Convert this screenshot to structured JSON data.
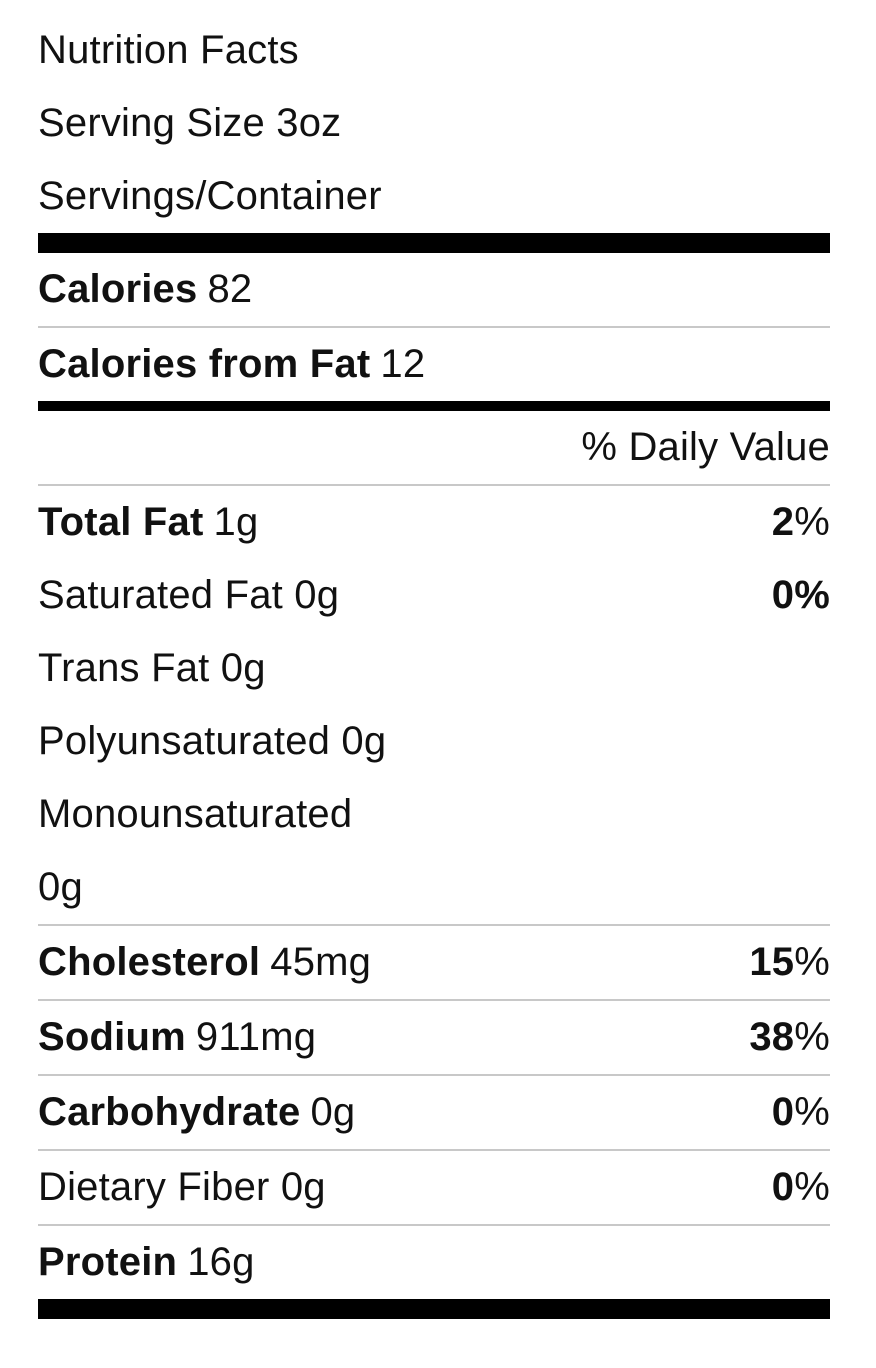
{
  "header": {
    "title": "Nutrition Facts",
    "serving_size": "Serving Size 3oz",
    "servings_per_container": "Servings/Container"
  },
  "calories": {
    "label": "Calories",
    "value": "82",
    "from_fat_label": "Calories from Fat",
    "from_fat_value": "12"
  },
  "daily_value_header": "% Daily Value",
  "nutrients": {
    "total_fat": {
      "label": "Total Fat",
      "amount": "1g",
      "dv_number": "2",
      "dv_sign": "%"
    },
    "saturated_fat": {
      "label": "Saturated Fat 0g",
      "dv": "0%"
    },
    "trans_fat": {
      "label": "Trans Fat 0g"
    },
    "polyunsaturated": {
      "label": "Polyunsaturated 0g"
    },
    "monounsaturated": {
      "label": "Monounsaturated",
      "amount": "0g"
    },
    "cholesterol": {
      "label": "Cholesterol",
      "amount": "45mg",
      "dv_number": "15",
      "dv_sign": "%"
    },
    "sodium": {
      "label": "Sodium",
      "amount": "911mg",
      "dv_number": "38",
      "dv_sign": "%"
    },
    "carbohydrate": {
      "label": "Carbohydrate",
      "amount": "0g",
      "dv_number": "0",
      "dv_sign": "%"
    },
    "dietary_fiber": {
      "label": "Dietary Fiber 0g",
      "dv_number": "0",
      "dv_sign": "%"
    },
    "protein": {
      "label": "Protein",
      "amount": "16g"
    }
  }
}
